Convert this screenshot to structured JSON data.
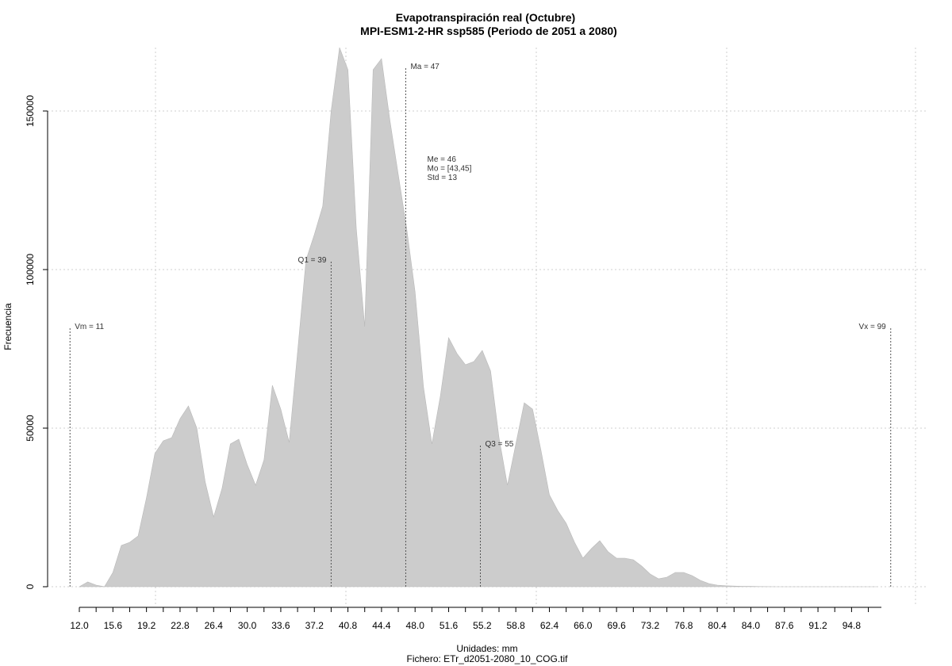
{
  "chart_data": {
    "type": "area",
    "title": "Evapotranspiración real (Octubre)",
    "subtitle": "MPI-ESM1-2-HR ssp585 (Periodo de 2051 a 2080)",
    "xlabel": "Unidades: mm",
    "ylabel": "Frecuencia",
    "footer": "Fichero: ETr_d2051-2080_10_COG.tif",
    "xlim": [
      12.0,
      98.0
    ],
    "ylim": [
      0,
      170000
    ],
    "x_ticks": [
      "12.0",
      "15.6",
      "19.2",
      "22.8",
      "26.4",
      "30.0",
      "33.6",
      "37.2",
      "40.8",
      "44.4",
      "48.0",
      "51.6",
      "55.2",
      "58.8",
      "62.4",
      "66.0",
      "69.6",
      "73.2",
      "76.8",
      "80.4",
      "84.0",
      "87.6",
      "91.2",
      "94.8"
    ],
    "x_tick_values": [
      12.0,
      15.6,
      19.2,
      22.8,
      26.4,
      30.0,
      33.6,
      37.2,
      40.8,
      44.4,
      48.0,
      51.6,
      55.2,
      58.8,
      62.4,
      66.0,
      69.6,
      73.2,
      76.8,
      80.4,
      84.0,
      87.6,
      91.2,
      94.8
    ],
    "y_ticks": [
      "0",
      "50000",
      "100000",
      "150000"
    ],
    "y_tick_values": [
      0,
      50000,
      100000,
      150000
    ],
    "grid": true,
    "fill_color": "#cccccc",
    "x": [
      12.0,
      12.9,
      13.8,
      14.7,
      15.6,
      16.5,
      17.4,
      18.3,
      19.2,
      20.1,
      21.0,
      21.9,
      22.8,
      23.7,
      24.6,
      25.5,
      26.4,
      27.3,
      28.2,
      29.1,
      30.0,
      30.9,
      31.8,
      32.7,
      33.6,
      34.5,
      35.4,
      36.3,
      37.2,
      38.1,
      39.0,
      39.9,
      40.8,
      41.7,
      42.6,
      43.5,
      44.4,
      45.3,
      46.2,
      47.1,
      48.0,
      48.9,
      49.8,
      50.7,
      51.6,
      52.5,
      53.4,
      54.3,
      55.2,
      56.1,
      57.0,
      57.9,
      58.8,
      59.7,
      60.6,
      61.5,
      62.4,
      63.3,
      64.2,
      65.1,
      66.0,
      66.9,
      67.8,
      68.7,
      69.6,
      70.5,
      71.4,
      72.3,
      73.2,
      74.1,
      75.0,
      75.9,
      76.8,
      77.7,
      78.6,
      79.5,
      80.4,
      81.3,
      82.2,
      83.1,
      84.0,
      84.9,
      85.8,
      86.7,
      87.6,
      88.5,
      89.4,
      90.3,
      91.2,
      92.1,
      93.0,
      93.9,
      94.8,
      95.7,
      96.6,
      97.5
    ],
    "values": [
      0,
      1500,
      500,
      0,
      4500,
      13000,
      14000,
      16000,
      28000,
      42000,
      46000,
      47000,
      53000,
      57000,
      50000,
      33000,
      22000,
      31000,
      45000,
      46500,
      38500,
      32000,
      40000,
      63500,
      56000,
      45500,
      74000,
      103000,
      111000,
      120000,
      150000,
      172000,
      163000,
      113000,
      82000,
      163000,
      166500,
      147000,
      130000,
      113000,
      93000,
      63000,
      45000,
      60000,
      78500,
      73500,
      70000,
      71000,
      74500,
      68000,
      47000,
      32000,
      45000,
      58000,
      56000,
      43000,
      29000,
      24000,
      20000,
      14000,
      9000,
      12000,
      14500,
      11000,
      9000,
      9000,
      8500,
      6500,
      4000,
      2500,
      3000,
      4500,
      4500,
      3500,
      2000,
      1000,
      500,
      300,
      200,
      100,
      100,
      50,
      20,
      10,
      5,
      0,
      0,
      0,
      0,
      0,
      0,
      0,
      0,
      0,
      0,
      0
    ],
    "markers": [
      {
        "label": "Vm = 11",
        "x": 11,
        "height": 82000,
        "side": "right"
      },
      {
        "label": "Q1 = 39",
        "x": 39,
        "height": 103000,
        "side": "left"
      },
      {
        "label": "Ma = 47",
        "x": 47,
        "height": 164000,
        "side": "right"
      },
      {
        "label": "Q3 = 55",
        "x": 55,
        "height": 45000,
        "side": "right"
      },
      {
        "label": "Vx = 99",
        "x": 99,
        "height": 82000,
        "side": "left"
      }
    ],
    "stats": [
      "Me = 46",
      "Mo = [43,45]",
      "Std = 13"
    ],
    "stats_anchor": {
      "x": 49.3,
      "y": 134000
    }
  }
}
